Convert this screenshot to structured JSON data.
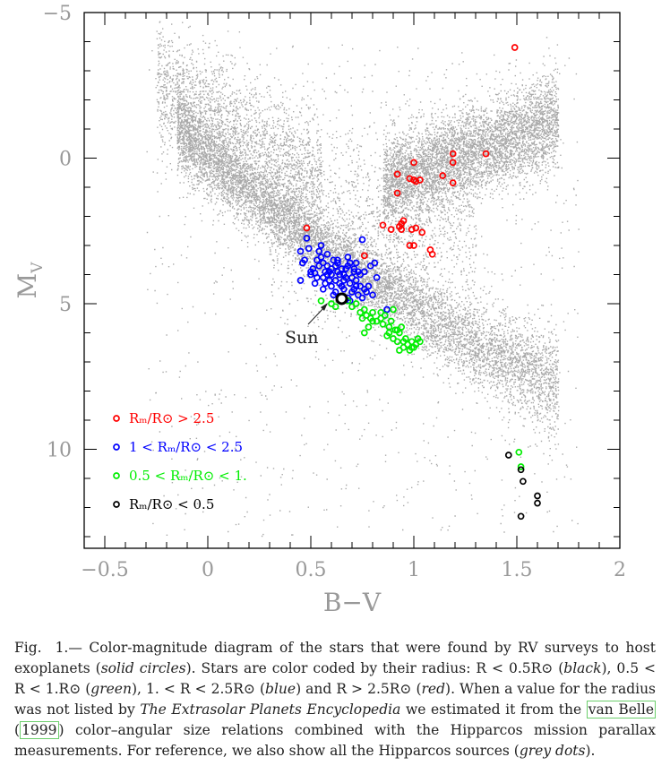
{
  "chart_data": {
    "type": "scatter",
    "xlabel": "B−V",
    "ylabel": "M",
    "ylabel_sub": "V",
    "xlim": [
      -0.6,
      2.0
    ],
    "ylim": [
      13.4,
      -5.0
    ],
    "x_ticks": [
      -0.5,
      0,
      0.5,
      1,
      1.5,
      2
    ],
    "x_tick_labels": [
      "−0.5",
      "0",
      "0.5",
      "1",
      "1.5",
      "2"
    ],
    "y_ticks": [
      -5,
      0,
      5,
      10
    ],
    "y_tick_labels": [
      "−5",
      "0",
      "5",
      "10"
    ],
    "annotation": {
      "text": "Sun",
      "x": 0.65,
      "y": 4.83
    },
    "legend": {
      "placement": "lower-left",
      "entries": [
        {
          "label": "Rₘ/R⊙ > 2.5",
          "color": "#ff0000"
        },
        {
          "label": "1 < Rₘ/R⊙ < 2.5",
          "color": "#0000ff"
        },
        {
          "label": "0.5 < Rₘ/R⊙ < 1.",
          "color": "#00ee00"
        },
        {
          "label": "Rₘ/R⊙ < 0.5",
          "color": "#000000"
        }
      ]
    },
    "series": [
      {
        "name": "Rₘ/R⊙ > 2.5",
        "color": "#ff0000",
        "x": [
          1.49,
          1.35,
          1.19,
          1.19,
          1.14,
          1.19,
          1.0,
          0.92,
          0.98,
          1.0,
          1.01,
          1.03,
          0.92,
          0.95,
          0.94,
          0.94,
          0.99,
          0.89,
          0.85,
          1.04,
          1.01,
          1.0,
          1.08,
          1.09,
          0.98,
          0.93,
          0.48,
          0.76
        ],
        "y": [
          -3.8,
          -0.15,
          -0.15,
          0.15,
          0.6,
          0.85,
          0.15,
          0.55,
          0.7,
          0.75,
          0.8,
          0.75,
          1.2,
          2.15,
          2.25,
          2.45,
          2.45,
          2.45,
          2.3,
          2.55,
          2.4,
          3.0,
          3.15,
          3.3,
          3.0,
          2.35,
          2.4,
          3.35
        ]
      },
      {
        "name": "1 < Rₘ/R⊙ < 2.5",
        "color": "#0000ff",
        "x": [
          0.48,
          0.49,
          0.47,
          0.46,
          0.45,
          0.51,
          0.52,
          0.53,
          0.54,
          0.55,
          0.56,
          0.57,
          0.58,
          0.59,
          0.6,
          0.61,
          0.62,
          0.63,
          0.64,
          0.65,
          0.66,
          0.67,
          0.68,
          0.69,
          0.7,
          0.71,
          0.72,
          0.73,
          0.74,
          0.75,
          0.76,
          0.77,
          0.78,
          0.5,
          0.52,
          0.54,
          0.56,
          0.58,
          0.6,
          0.62,
          0.64,
          0.66,
          0.68,
          0.7,
          0.72,
          0.74,
          0.76,
          0.55,
          0.57,
          0.59,
          0.61,
          0.63,
          0.65,
          0.67,
          0.69,
          0.71,
          0.73,
          0.53,
          0.56,
          0.6,
          0.63,
          0.66,
          0.69,
          0.72,
          0.58,
          0.62,
          0.68,
          0.71,
          0.79,
          0.81,
          0.82,
          0.8,
          0.75,
          0.87,
          0.86,
          0.45,
          0.5
        ],
        "y": [
          2.75,
          3.1,
          3.5,
          3.6,
          4.2,
          3.8,
          3.95,
          4.1,
          3.2,
          3.0,
          3.6,
          4.3,
          3.7,
          3.9,
          4.4,
          3.5,
          4.2,
          3.6,
          4.0,
          3.8,
          4.5,
          4.1,
          3.7,
          4.3,
          4.6,
          3.9,
          4.2,
          4.7,
          4.4,
          4.8,
          3.9,
          4.6,
          4.4,
          4.0,
          4.3,
          3.7,
          4.5,
          4.0,
          3.8,
          4.6,
          4.3,
          4.0,
          4.8,
          4.1,
          3.6,
          4.0,
          4.5,
          3.4,
          3.9,
          4.2,
          4.7,
          3.5,
          4.4,
          3.8,
          4.9,
          4.5,
          3.9,
          3.5,
          4.1,
          4.0,
          3.9,
          4.2,
          3.6,
          4.4,
          3.3,
          3.7,
          3.4,
          3.8,
          3.7,
          3.6,
          4.1,
          4.7,
          2.8,
          5.2,
          5.4,
          3.2,
          3.9
        ]
      },
      {
        "name": "0.5 < Rₘ/R⊙ < 1.",
        "color": "#00ee00",
        "x": [
          0.55,
          0.6,
          0.62,
          0.68,
          0.7,
          0.72,
          0.74,
          0.75,
          0.76,
          0.77,
          0.78,
          0.79,
          0.8,
          0.82,
          0.84,
          0.85,
          0.86,
          0.87,
          0.88,
          0.89,
          0.9,
          0.91,
          0.92,
          0.93,
          0.94,
          0.95,
          0.96,
          0.97,
          0.98,
          0.99,
          1.0,
          1.01,
          1.02,
          1.03,
          0.9,
          0.93,
          0.76,
          0.8,
          0.84,
          0.88,
          0.92,
          0.95,
          0.99,
          1.51,
          1.52
        ],
        "y": [
          4.9,
          5.0,
          5.1,
          4.9,
          5.1,
          5.0,
          5.3,
          5.5,
          6.0,
          5.4,
          5.8,
          5.5,
          5.3,
          5.6,
          5.5,
          5.7,
          5.4,
          6.1,
          5.8,
          5.6,
          6.2,
          5.9,
          6.3,
          6.0,
          5.8,
          6.5,
          6.2,
          6.4,
          6.6,
          6.3,
          6.5,
          6.4,
          6.2,
          6.3,
          5.2,
          6.6,
          5.2,
          5.6,
          5.3,
          6.0,
          5.9,
          6.3,
          6.5,
          10.1,
          10.6
        ]
      },
      {
        "name": "Rₘ/R⊙ < 0.5",
        "color": "#000000",
        "x": [
          1.46,
          1.52,
          1.53,
          1.6,
          1.6,
          1.52
        ],
        "y": [
          10.2,
          10.7,
          11.1,
          11.6,
          11.85,
          12.3
        ]
      }
    ]
  },
  "caption": {
    "fig_label": "Fig.  1.—",
    "part1": " Color-magnitude diagram of the stars that were found by RV surveys to host exoplanets (",
    "part1_italic": "solid circles",
    "part2": "). Stars are color coded by their radius: R < 0.5R⊙ (",
    "black": "black",
    "part3": "), 0.5 < R < 1.R⊙ (",
    "green": "green",
    "part4": "), 1. < R < 2.5R⊙ (",
    "blue": "blue",
    "part5": ") and R > 2.5R⊙ (",
    "red": "red",
    "part6": "). When a value for the radius was not listed by ",
    "encyclopedia": "The Extrasolar Planets Encyclopedia",
    "part7": " we estimated it from the ",
    "ref_name": "van Belle",
    "ref_open": " (",
    "ref_year": "1999",
    "part8": ") color–angular size relations combined with the Hipparcos mission parallax measurements. For reference, we also show all the Hipparcos sources (",
    "grey": "grey dots",
    "part9": ")."
  }
}
